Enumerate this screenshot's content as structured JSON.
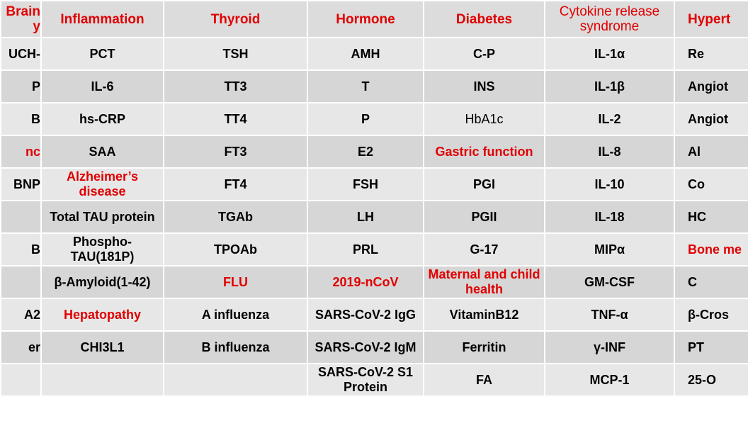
{
  "table": {
    "header": [
      "Brain\ny",
      "Inflammation",
      "Thyroid",
      "Hormone",
      "Diabetes",
      "Cytokine release syndrome",
      "Hypert"
    ],
    "rows": [
      [
        "UCH-",
        "PCT",
        "TSH",
        "AMH",
        "C-P",
        "IL-1α",
        "Re"
      ],
      [
        "P",
        "IL-6",
        "TT3",
        "T",
        "INS",
        "IL-1β",
        "Angiot"
      ],
      [
        "B",
        "hs-CRP",
        "TT4",
        "P",
        "HbA1c",
        "IL-2",
        "Angiot"
      ],
      [
        "nc",
        "SAA",
        "FT3",
        "E2",
        "Gastric function",
        "IL-8",
        "Al"
      ],
      [
        "BNP",
        "Alzheimer’s disease",
        "FT4",
        "FSH",
        "PGI",
        "IL-10",
        "Co"
      ],
      [
        null,
        "Total TAU protein",
        "TGAb",
        "LH",
        "PGII",
        "IL-18",
        "HC"
      ],
      [
        "B",
        "Phospho-TAU(181P)",
        "TPOAb",
        "PRL",
        "G-17",
        "MIPα",
        "Bone me"
      ],
      [
        null,
        "β-Amyloid(1-42)",
        "FLU",
        "2019-nCoV",
        "Maternal and child health",
        "GM-CSF",
        "C"
      ],
      [
        "A2",
        "Hepatopathy",
        "A influenza",
        "SARS-CoV-2 IgG",
        "VitaminB12",
        "TNF-α",
        "β-Cros"
      ],
      [
        "er",
        "CHI3L1",
        "B influenza",
        "SARS-CoV-2 IgM",
        "Ferritin",
        "γ-INF",
        "PT"
      ],
      [
        null,
        null,
        null,
        "SARS-CoV-2 S1 Protein",
        "FA",
        "MCP-1",
        "25-O"
      ]
    ]
  }
}
